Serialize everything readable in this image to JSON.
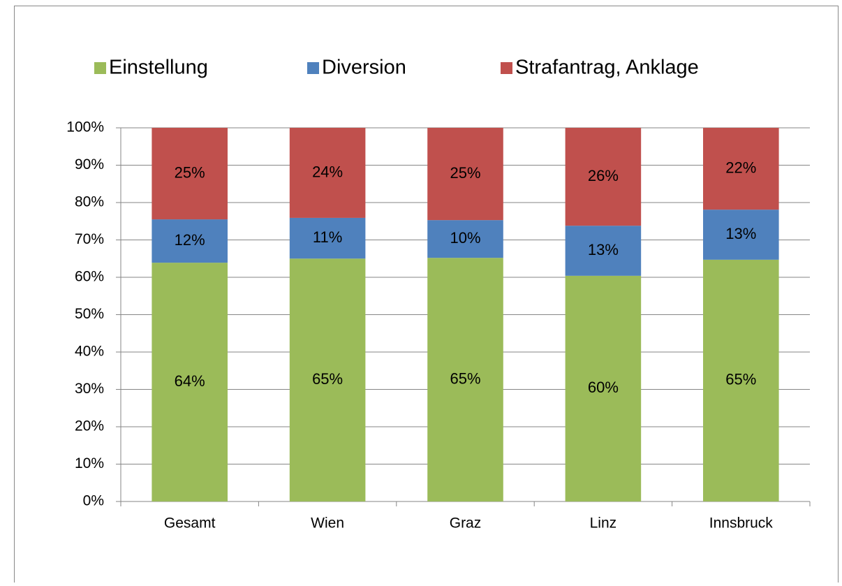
{
  "chart_data": {
    "type": "stacked_bar",
    "categories": [
      "Gesamt",
      "Wien",
      "Graz",
      "Linz",
      "Innsbruck"
    ],
    "series": [
      {
        "name": "Einstellung",
        "color": "#9bbb59",
        "values": [
          63.9,
          65.0,
          65.2,
          60.4,
          64.7
        ],
        "value_labels": [
          "64%",
          "65%",
          "65%",
          "60%",
          "65%"
        ]
      },
      {
        "name": "Diversion",
        "color": "#4f81bd",
        "values": [
          11.6,
          10.9,
          10.1,
          13.4,
          13.4
        ],
        "value_labels": [
          "12%",
          "11%",
          "10%",
          "13%",
          "13%"
        ]
      },
      {
        "name": "Strafantrag, Anklage",
        "color": "#c0504d",
        "values": [
          24.5,
          24.1,
          24.7,
          26.2,
          21.9
        ],
        "value_labels": [
          "25%",
          "24%",
          "25%",
          "26%",
          "22%"
        ]
      }
    ],
    "ylim": [
      0,
      100
    ],
    "yticks": [
      {
        "value": 0,
        "label": "0%"
      },
      {
        "value": 10,
        "label": "10%"
      },
      {
        "value": 20,
        "label": "20%"
      },
      {
        "value": 30,
        "label": "30%"
      },
      {
        "value": 40,
        "label": "40%"
      },
      {
        "value": 50,
        "label": "50%"
      },
      {
        "value": 60,
        "label": "60%"
      },
      {
        "value": 70,
        "label": "70%"
      },
      {
        "value": 80,
        "label": "80%"
      },
      {
        "value": 90,
        "label": "90%"
      },
      {
        "value": 100,
        "label": "100%"
      }
    ],
    "grid": true,
    "legend": "top"
  }
}
